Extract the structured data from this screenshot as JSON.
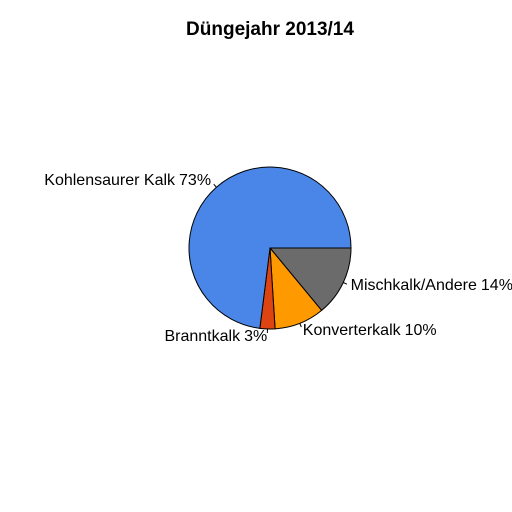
{
  "chart_data": {
    "type": "pie",
    "title": "Düngejahr 2013/14",
    "categories": [
      "Mischkalk/Andere",
      "Konverterkalk",
      "Branntkalk",
      "Kohlensaurer Kalk"
    ],
    "values": [
      14,
      10,
      3,
      73
    ],
    "value_labels": [
      "14%",
      "10%",
      "3%",
      "73%"
    ],
    "colors": [
      "#6b6b6b",
      "#ff9900",
      "#dd4411",
      "#4a86e8"
    ],
    "direction": "clockwise",
    "start": "right"
  }
}
